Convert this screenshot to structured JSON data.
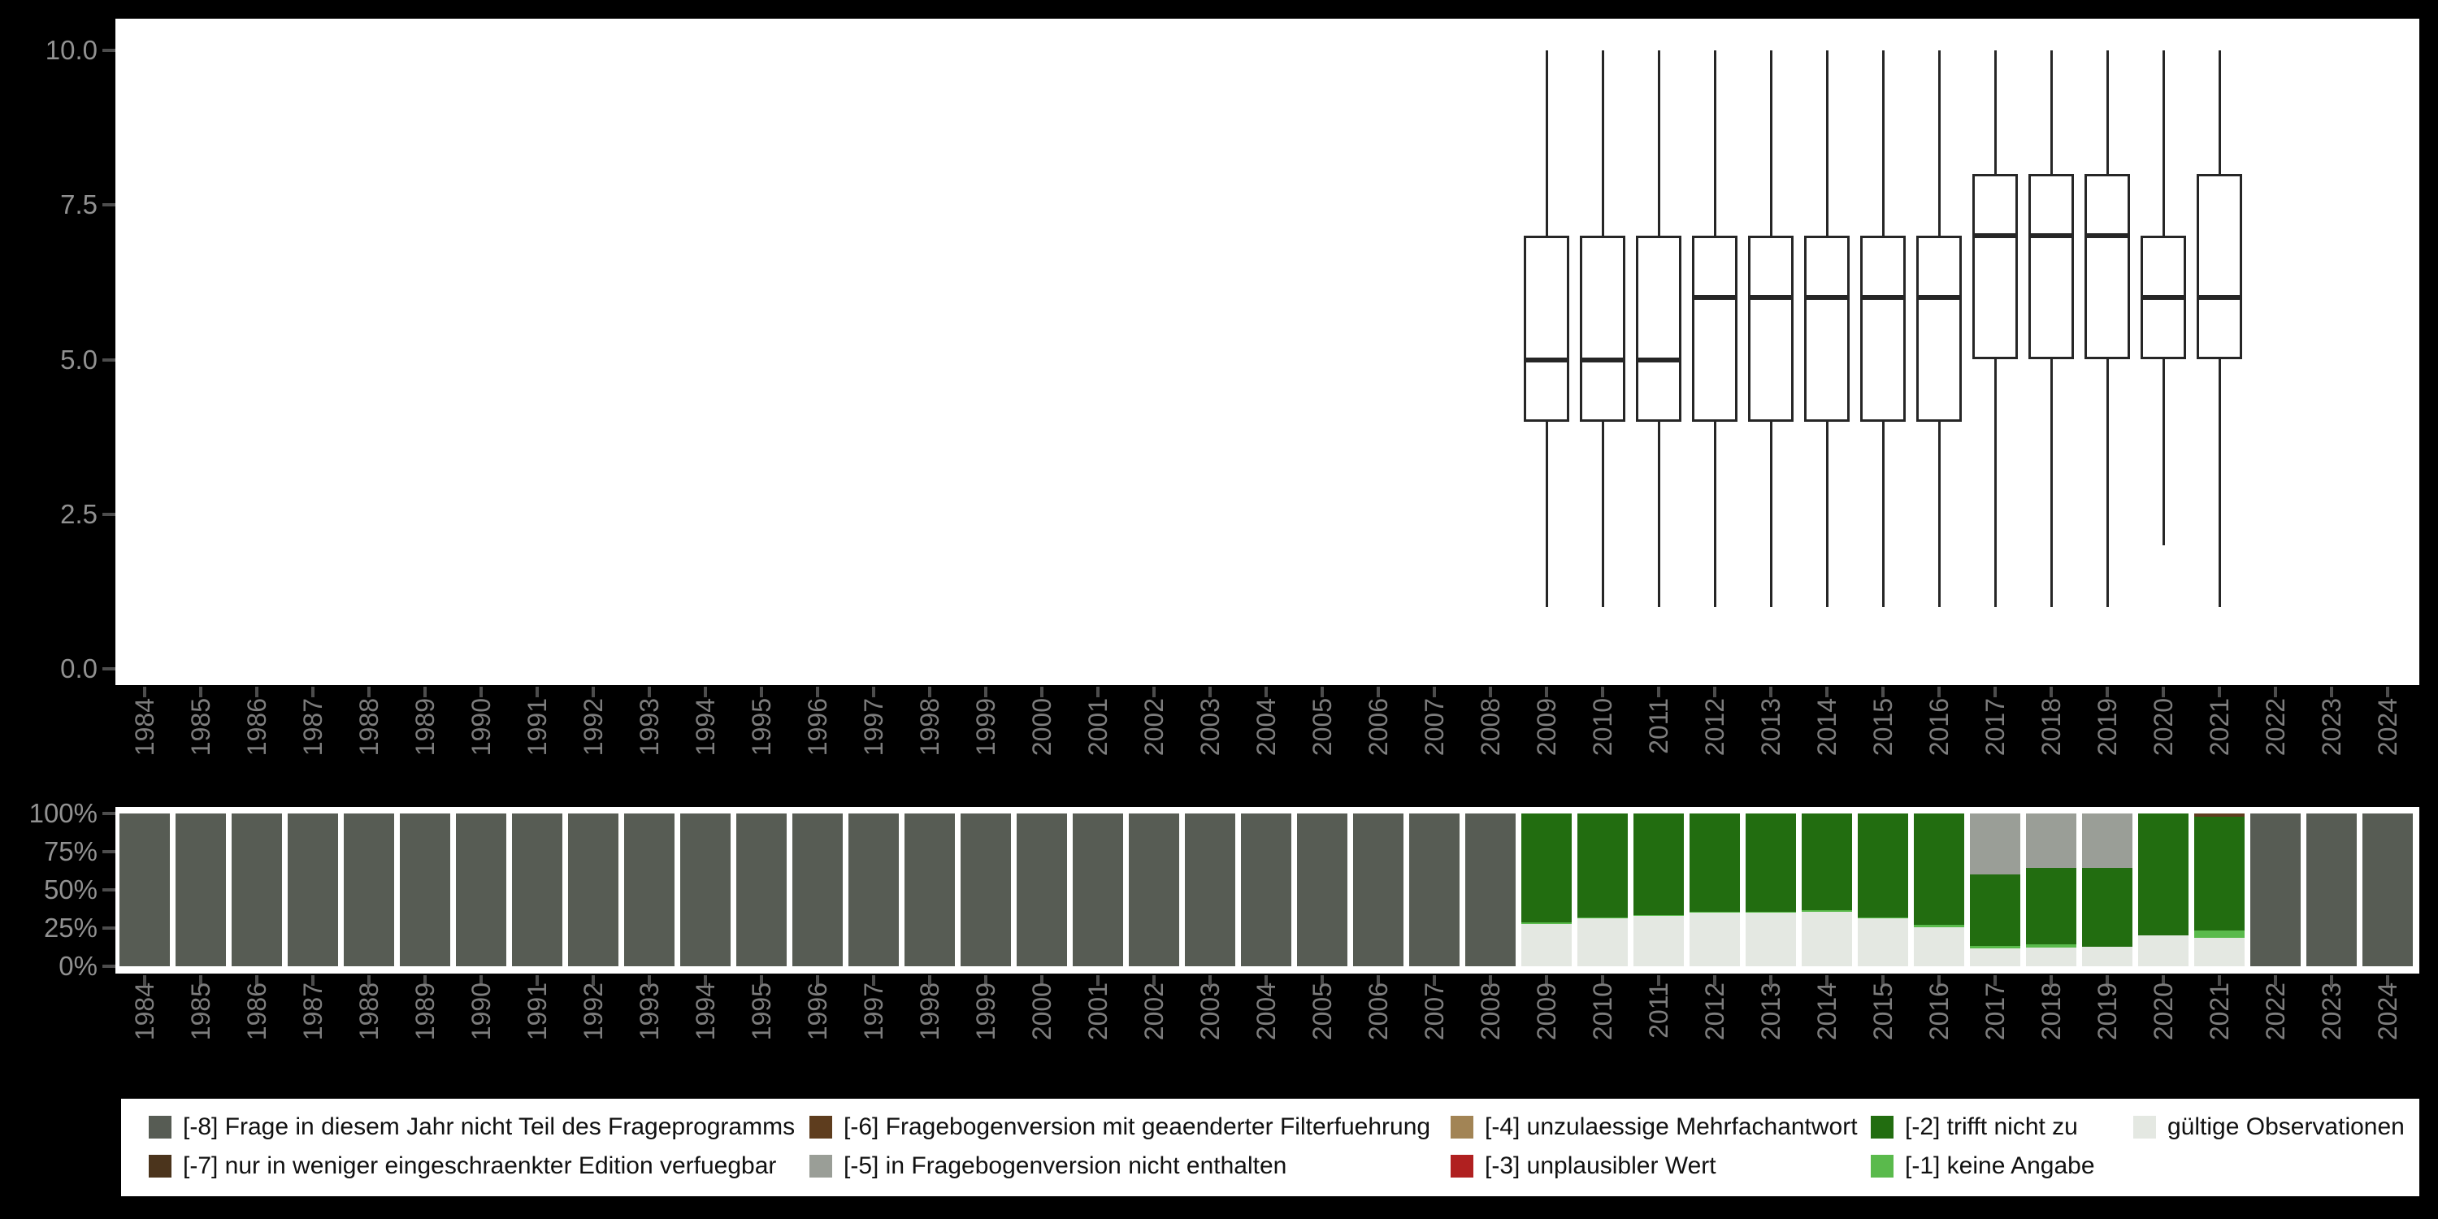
{
  "figure": {
    "background": "#000000",
    "panel_background": "#ffffff"
  },
  "colors": {
    "m8": "#575c54",
    "m7": "#4b341c",
    "m6": "#5e3d1e",
    "m5": "#9a9e97",
    "m4": "#a28455",
    "m3": "#b02020",
    "m2": "#226d10",
    "m1": "#5aba4c",
    "valid": "#e4e8e2",
    "box_stroke": "#262626",
    "axis_text": "#919191",
    "year_text": "#7d7d7d",
    "tick_mark": "#4d4d4d",
    "legend_text": "#111111"
  },
  "legend": {
    "columns": [
      [
        {
          "key": "m8",
          "label": "[-8] Frage in diesem Jahr nicht Teil des Frageprogramms"
        },
        {
          "key": "m7",
          "label": "[-7] nur in weniger eingeschraenkter Edition verfuegbar"
        }
      ],
      [
        {
          "key": "m6",
          "label": "[-6] Fragebogenversion mit geaenderter Filterfuehrung"
        },
        {
          "key": "m5",
          "label": "[-5] in Fragebogenversion nicht enthalten"
        }
      ],
      [
        {
          "key": "m4",
          "label": "[-4] unzulaessige Mehrfachantwort"
        },
        {
          "key": "m3",
          "label": "[-3] unplausibler Wert"
        }
      ],
      [
        {
          "key": "m2",
          "label": "[-2] trifft nicht zu"
        },
        {
          "key": "m1",
          "label": "[-1] keine Angabe"
        }
      ],
      [
        {
          "key": "valid",
          "label": "gültige Observationen"
        }
      ]
    ]
  },
  "chart_data": [
    {
      "id": "boxplot-by-year",
      "type": "boxplot",
      "title": "",
      "xlabel": "",
      "ylabel": "",
      "ylim": [
        0,
        10
      ],
      "grid": false,
      "yticks": [
        "10.0",
        "7.5",
        "5.0",
        "2.5",
        "0.0"
      ],
      "ytick_values": [
        10,
        7.5,
        5,
        2.5,
        0
      ],
      "x_categories": [
        "1984",
        "1985",
        "1986",
        "1987",
        "1988",
        "1989",
        "1990",
        "1991",
        "1992",
        "1993",
        "1994",
        "1995",
        "1996",
        "1997",
        "1998",
        "1999",
        "2000",
        "2001",
        "2002",
        "2003",
        "2004",
        "2005",
        "2006",
        "2007",
        "2008",
        "2009",
        "2010",
        "2011",
        "2012",
        "2013",
        "2014",
        "2015",
        "2016",
        "2017",
        "2018",
        "2019",
        "2020",
        "2021",
        "2022",
        "2023",
        "2024"
      ],
      "series": [
        {
          "x": "2009",
          "min": 1,
          "q1": 4,
          "median": 5,
          "q3": 7,
          "max": 10
        },
        {
          "x": "2010",
          "min": 1,
          "q1": 4,
          "median": 5,
          "q3": 7,
          "max": 10
        },
        {
          "x": "2011",
          "min": 1,
          "q1": 4,
          "median": 5,
          "q3": 7,
          "max": 10
        },
        {
          "x": "2012",
          "min": 1,
          "q1": 4,
          "median": 6,
          "q3": 7,
          "max": 10
        },
        {
          "x": "2013",
          "min": 1,
          "q1": 4,
          "median": 6,
          "q3": 7,
          "max": 10
        },
        {
          "x": "2014",
          "min": 1,
          "q1": 4,
          "median": 6,
          "q3": 7,
          "max": 10
        },
        {
          "x": "2015",
          "min": 1,
          "q1": 4,
          "median": 6,
          "q3": 7,
          "max": 10
        },
        {
          "x": "2016",
          "min": 1,
          "q1": 4,
          "median": 6,
          "q3": 7,
          "max": 10
        },
        {
          "x": "2017",
          "min": 1,
          "q1": 5,
          "median": 7,
          "q3": 8,
          "max": 10
        },
        {
          "x": "2018",
          "min": 1,
          "q1": 5,
          "median": 7,
          "q3": 8,
          "max": 10
        },
        {
          "x": "2019",
          "min": 1,
          "q1": 5,
          "median": 7,
          "q3": 8,
          "max": 10
        },
        {
          "x": "2020",
          "min": 2,
          "q1": 5,
          "median": 6,
          "q3": 7,
          "max": 10
        },
        {
          "x": "2021",
          "min": 1,
          "q1": 5,
          "median": 6,
          "q3": 8,
          "max": 10
        }
      ]
    },
    {
      "id": "missing-share-by-year",
      "type": "bar",
      "stacking": "percent",
      "title": "",
      "xlabel": "",
      "ylabel": "",
      "grid": false,
      "yticks": [
        "100%",
        "75%",
        "50%",
        "25%",
        "0%"
      ],
      "ytick_values": [
        100,
        75,
        50,
        25,
        0
      ],
      "segment_order": [
        "valid",
        "m1",
        "m2",
        "m5",
        "m6",
        "m8"
      ],
      "x_categories": [
        "1984",
        "1985",
        "1986",
        "1987",
        "1988",
        "1989",
        "1990",
        "1991",
        "1992",
        "1993",
        "1994",
        "1995",
        "1996",
        "1997",
        "1998",
        "1999",
        "2000",
        "2001",
        "2002",
        "2003",
        "2004",
        "2005",
        "2006",
        "2007",
        "2008",
        "2009",
        "2010",
        "2011",
        "2012",
        "2013",
        "2014",
        "2015",
        "2016",
        "2017",
        "2018",
        "2019",
        "2020",
        "2021",
        "2022",
        "2023",
        "2024"
      ],
      "bars": {
        "1984": {
          "m8": 100
        },
        "1985": {
          "m8": 100
        },
        "1986": {
          "m8": 100
        },
        "1987": {
          "m8": 100
        },
        "1988": {
          "m8": 100
        },
        "1989": {
          "m8": 100
        },
        "1990": {
          "m8": 100
        },
        "1991": {
          "m8": 100
        },
        "1992": {
          "m8": 100
        },
        "1993": {
          "m8": 100
        },
        "1994": {
          "m8": 100
        },
        "1995": {
          "m8": 100
        },
        "1996": {
          "m8": 100
        },
        "1997": {
          "m8": 100
        },
        "1998": {
          "m8": 100
        },
        "1999": {
          "m8": 100
        },
        "2000": {
          "m8": 100
        },
        "2001": {
          "m8": 100
        },
        "2002": {
          "m8": 100
        },
        "2003": {
          "m8": 100
        },
        "2004": {
          "m8": 100
        },
        "2005": {
          "m8": 100
        },
        "2006": {
          "m8": 100
        },
        "2007": {
          "m8": 100
        },
        "2008": {
          "m8": 100
        },
        "2009": {
          "valid": 27.5,
          "m1": 1.0,
          "m2": 71.5
        },
        "2010": {
          "valid": 31.5,
          "m1": 0.5,
          "m2": 68.0
        },
        "2011": {
          "valid": 33.0,
          "m1": 0.5,
          "m2": 66.5
        },
        "2012": {
          "valid": 35.0,
          "m1": 0.7,
          "m2": 64.3
        },
        "2013": {
          "valid": 35.0,
          "m1": 0.7,
          "m2": 64.3
        },
        "2014": {
          "valid": 35.5,
          "m1": 1.0,
          "m2": 63.5
        },
        "2015": {
          "valid": 31.7,
          "m1": 0.4,
          "m2": 67.9
        },
        "2016": {
          "valid": 25.3,
          "m1": 2.0,
          "m2": 72.7
        },
        "2017": {
          "valid": 11.5,
          "m1": 1.8,
          "m2": 46.7,
          "m5": 40.0
        },
        "2018": {
          "valid": 12.0,
          "m1": 2.3,
          "m2": 50.1,
          "m5": 35.6
        },
        "2019": {
          "valid": 12.9,
          "m1": 0.0,
          "m2": 51.5,
          "m5": 35.6
        },
        "2020": {
          "valid": 20.3,
          "m1": 0.0,
          "m2": 79.7
        },
        "2021": {
          "valid": 18.8,
          "m1": 4.8,
          "m2": 74.4,
          "m6": 2.0
        },
        "2022": {
          "m8": 100
        },
        "2023": {
          "m8": 100
        },
        "2024": {
          "m8": 100
        }
      }
    }
  ]
}
